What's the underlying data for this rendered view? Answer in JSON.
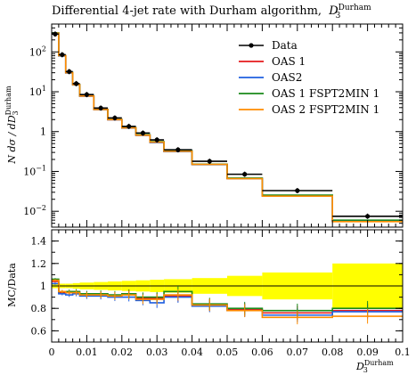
{
  "chart_data": [
    {
      "type": "line",
      "title": "Differential 4-jet rate with Durham algorithm, D_3^Durham",
      "title_main": "Differential 4-jet rate with Durham algorithm,",
      "title_var": "D",
      "title_sub": "3",
      "title_sup": "Durham",
      "ylabel": "N dσ / dD_3^Durham",
      "ylabel_main": "N dσ / dD",
      "ylabel_sub": "3",
      "ylabel_sup": "Durham",
      "yscale": "log",
      "ylim": [
        0.004,
        500
      ],
      "xlim": [
        0,
        0.1
      ],
      "y_ticks": [
        {
          "v": 0.01,
          "b": "10",
          "e": "−2"
        },
        {
          "v": 0.1,
          "b": "10",
          "e": "−1"
        },
        {
          "v": 1,
          "b": "1",
          "e": ""
        },
        {
          "v": 10,
          "b": "10",
          "e": "1"
        },
        {
          "v": 100,
          "b": "10",
          "e": "2"
        }
      ],
      "legend_position": "top-right",
      "bin_edges": [
        0,
        0.002,
        0.004,
        0.006,
        0.008,
        0.012,
        0.016,
        0.02,
        0.024,
        0.028,
        0.032,
        0.04,
        0.05,
        0.06,
        0.08,
        0.1
      ],
      "series": [
        {
          "name": "Data",
          "color": "#000000",
          "style": "points",
          "x": [
            0.001,
            0.003,
            0.005,
            0.007,
            0.01,
            0.014,
            0.018,
            0.022,
            0.026,
            0.03,
            0.036,
            0.045,
            0.055,
            0.07,
            0.09
          ],
          "y": [
            280,
            85,
            32,
            16,
            8.5,
            3.9,
            2.2,
            1.35,
            0.92,
            0.62,
            0.35,
            0.18,
            0.085,
            0.033,
            0.0075
          ]
        },
        {
          "name": "OAS 1",
          "color": "#e41a1c",
          "style": "hist",
          "y": [
            290,
            80,
            30,
            15,
            7.8,
            3.6,
            2.0,
            1.25,
            0.82,
            0.55,
            0.32,
            0.15,
            0.067,
            0.025,
            0.0058
          ]
        },
        {
          "name": "OAS2",
          "color": "#1f5fe0",
          "style": "hist",
          "y": [
            285,
            79,
            29.5,
            14.8,
            7.7,
            3.55,
            1.98,
            1.22,
            0.8,
            0.53,
            0.315,
            0.148,
            0.066,
            0.0245,
            0.0057
          ]
        },
        {
          "name": "OAS 1 FSPT2MIN 1",
          "color": "#1a8a1a",
          "style": "hist",
          "y": [
            300,
            81,
            30.5,
            15.2,
            7.9,
            3.62,
            2.02,
            1.26,
            0.83,
            0.56,
            0.33,
            0.152,
            0.068,
            0.0255,
            0.006
          ]
        },
        {
          "name": "OAS 2 FSPT2MIN 1",
          "color": "#ff8c00",
          "style": "hist",
          "y": [
            295,
            80.5,
            30,
            15,
            7.8,
            3.58,
            2.0,
            1.24,
            0.81,
            0.545,
            0.32,
            0.15,
            0.066,
            0.024,
            0.0055
          ]
        }
      ]
    },
    {
      "type": "line",
      "ylabel": "MC/Data",
      "xlabel": "D_3^Durham",
      "xlabel_main": "D",
      "xlabel_sub": "3",
      "xlabel_sup": "Durham",
      "xlim": [
        0,
        0.1
      ],
      "ylim": [
        0.5,
        1.5
      ],
      "x_ticks": [
        "0",
        "0.01",
        "0.02",
        "0.03",
        "0.04",
        "0.05",
        "0.06",
        "0.07",
        "0.08",
        "0.09",
        "0.1"
      ],
      "y_ticks": [
        "0.6",
        "0.8",
        "1",
        "1.2",
        "1.4"
      ],
      "data_band_color": "#ffff00",
      "data_band_halfwidth": [
        0.02,
        0.02,
        0.02,
        0.025,
        0.03,
        0.035,
        0.04,
        0.045,
        0.05,
        0.055,
        0.06,
        0.07,
        0.09,
        0.12,
        0.2
      ],
      "series": [
        {
          "name": "OAS 1",
          "color": "#e41a1c",
          "y": [
            1.04,
            0.94,
            0.94,
            0.94,
            0.92,
            0.92,
            0.91,
            0.93,
            0.89,
            0.89,
            0.91,
            0.83,
            0.79,
            0.76,
            0.78
          ]
        },
        {
          "name": "OAS2",
          "color": "#1f5fe0",
          "y": [
            1.02,
            0.93,
            0.92,
            0.93,
            0.91,
            0.91,
            0.9,
            0.9,
            0.87,
            0.85,
            0.9,
            0.82,
            0.78,
            0.74,
            0.77
          ]
        },
        {
          "name": "OAS 1 FSPT2MIN 1",
          "color": "#1a8a1a",
          "y": [
            1.06,
            0.95,
            0.95,
            0.95,
            0.93,
            0.93,
            0.92,
            0.93,
            0.9,
            0.9,
            0.95,
            0.84,
            0.8,
            0.78,
            0.8
          ]
        },
        {
          "name": "OAS 2 FSPT2MIN 1",
          "color": "#ff8c00",
          "y": [
            1.05,
            0.95,
            0.94,
            0.94,
            0.92,
            0.92,
            0.91,
            0.92,
            0.88,
            0.88,
            0.92,
            0.83,
            0.78,
            0.72,
            0.73
          ]
        }
      ]
    }
  ]
}
